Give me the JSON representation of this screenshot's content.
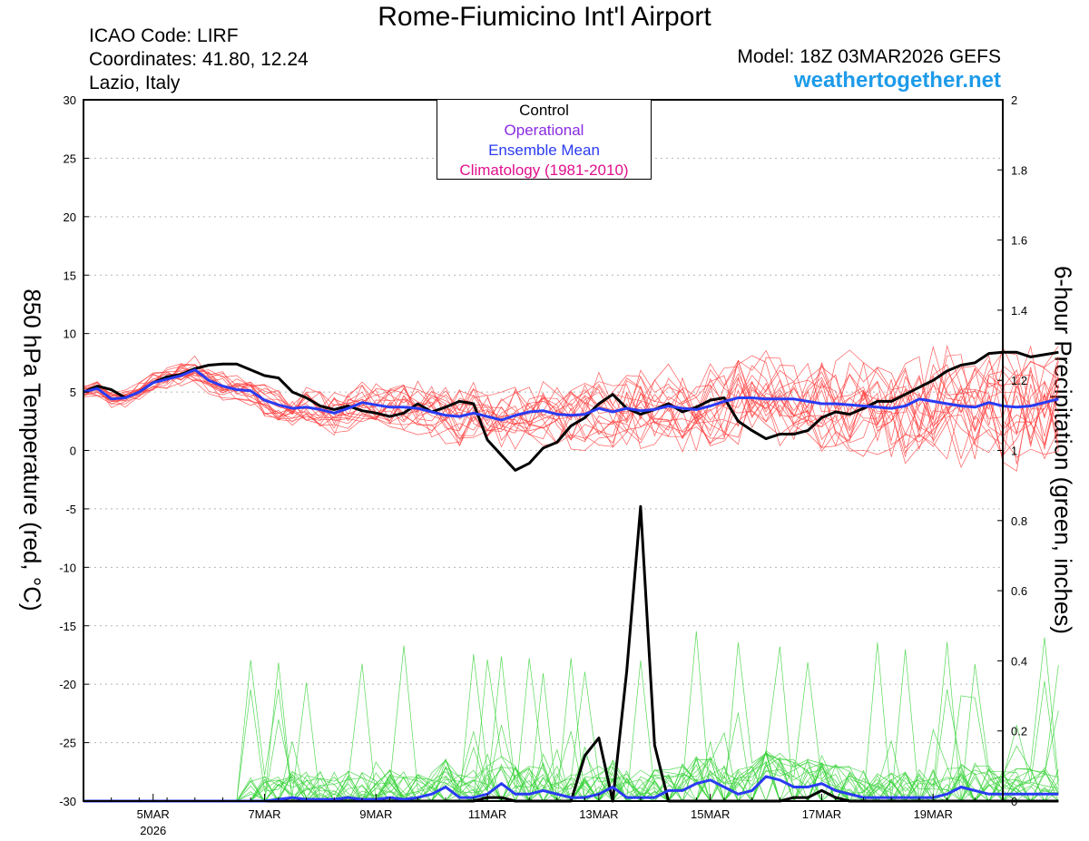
{
  "header": {
    "title": "Rome-Fiumicino Int'l Airport",
    "icao": "ICAO Code: LIRF",
    "coordinates": "Coordinates: 41.80, 12.24",
    "region": "Lazio, Italy",
    "model": "Model: 18Z 03MAR2026 GEFS",
    "site": "weathertogether.net"
  },
  "legend": {
    "items": [
      {
        "label": "Control",
        "color": "#000000"
      },
      {
        "label": "Operational",
        "color": "#8a2be2"
      },
      {
        "label": "Ensemble Mean",
        "color": "#2a3bf2"
      },
      {
        "label": "Climatology (1981-2010)",
        "color": "#e0108c"
      }
    ]
  },
  "chart_data": {
    "type": "line",
    "title": "Rome-Fiumicino Int'l Airport",
    "ylabel": "850 hPa Temperature (red, °C)",
    "y2label": "6-hour Precipitation (green, inches)",
    "ylim": [
      -30,
      30
    ],
    "y2lim": [
      0,
      2
    ],
    "yticks": [
      "30",
      "25",
      "20",
      "15",
      "10",
      "5",
      "0",
      "-5",
      "-10",
      "-15",
      "-20",
      "-25",
      "-30"
    ],
    "y2ticks": [
      "2",
      "1.8",
      "1.6",
      "1.4",
      "1.2",
      "1",
      "0.8",
      "0.6",
      "0.4",
      "0.2",
      "0"
    ],
    "xlim": [
      0,
      16.5
    ],
    "xticks": [
      {
        "day": 1.25,
        "label": "5MAR",
        "sub": "2026"
      },
      {
        "day": 3.25,
        "label": "7MAR",
        "sub": ""
      },
      {
        "day": 5.25,
        "label": "9MAR",
        "sub": ""
      },
      {
        "day": 7.25,
        "label": "11MAR",
        "sub": ""
      },
      {
        "day": 9.25,
        "label": "13MAR",
        "sub": ""
      },
      {
        "day": 11.25,
        "label": "15MAR",
        "sub": ""
      },
      {
        "day": 13.25,
        "label": "17MAR",
        "sub": ""
      },
      {
        "day": 15.25,
        "label": "19MAR",
        "sub": ""
      }
    ],
    "grid": true,
    "step_days": 0.25,
    "series": [
      {
        "name": "Control",
        "axis": "temperature",
        "color": "#000000",
        "values": [
          5.0,
          5.5,
          5.2,
          4.5,
          5.0,
          5.8,
          6.3,
          6.5,
          7.0,
          7.3,
          7.4,
          7.4,
          6.9,
          6.4,
          6.2,
          5.0,
          4.5,
          3.8,
          3.5,
          3.8,
          3.4,
          3.2,
          2.9,
          3.2,
          4.0,
          3.3,
          3.7,
          4.2,
          4.0,
          0.9,
          -0.4,
          -1.7,
          -1.1,
          0.2,
          0.7,
          2.1,
          2.8,
          4.0,
          4.8,
          3.6,
          3.1,
          3.5,
          4.0,
          3.3,
          3.7,
          4.3,
          4.5,
          2.5,
          1.7,
          1.0,
          1.4,
          1.4,
          1.7,
          2.8,
          3.3,
          3.1,
          3.6,
          4.2,
          4.2,
          4.8,
          5.4,
          6.0,
          6.8,
          7.3,
          7.5,
          8.3,
          8.4,
          8.4,
          8.0,
          8.2,
          8.4
        ]
      },
      {
        "name": "Ensemble Mean",
        "axis": "temperature",
        "color": "#2a3bf2",
        "values": [
          5.0,
          5.3,
          4.4,
          4.5,
          5.0,
          5.8,
          6.1,
          6.4,
          6.9,
          6.0,
          5.5,
          5.2,
          5.1,
          4.3,
          3.9,
          3.6,
          3.7,
          3.5,
          3.2,
          3.6,
          4.1,
          3.9,
          3.7,
          3.7,
          3.6,
          3.3,
          3.0,
          2.9,
          3.2,
          2.9,
          2.6,
          3.0,
          3.3,
          3.4,
          3.1,
          3.0,
          3.1,
          3.6,
          3.3,
          3.6,
          3.4,
          3.5,
          3.8,
          3.6,
          3.5,
          3.8,
          4.2,
          4.5,
          4.5,
          4.4,
          4.4,
          4.4,
          4.2,
          4.0,
          4.0,
          3.9,
          3.8,
          3.7,
          3.6,
          3.8,
          4.4,
          4.2,
          4.0,
          3.8,
          3.7,
          4.1,
          3.8,
          3.7,
          3.8,
          4.1,
          4.4
        ]
      },
      {
        "name": "Control precipitation",
        "axis": "precipitation",
        "color": "#000000",
        "values": [
          0,
          0,
          0,
          0,
          0,
          0,
          0,
          0,
          0,
          0,
          0,
          0,
          0,
          0,
          0,
          0,
          0,
          0,
          0,
          0,
          0,
          0,
          0,
          0,
          0,
          0,
          0,
          0,
          0,
          0.01,
          0.01,
          0,
          0,
          0,
          0,
          0,
          0.13,
          0.18,
          0,
          0.37,
          0.84,
          0.16,
          0,
          0,
          0,
          0,
          0,
          0,
          0,
          0,
          0,
          0.01,
          0.01,
          0.03,
          0.01,
          0,
          0,
          0,
          0,
          0,
          0,
          0,
          0,
          0,
          0,
          0,
          0,
          0,
          0,
          0,
          0
        ]
      },
      {
        "name": "Ensemble mean precipitation",
        "axis": "precipitation",
        "color": "#2a3bf2",
        "values": [
          0,
          0,
          0,
          0,
          0,
          0,
          0,
          0,
          0,
          0,
          0,
          0,
          0,
          0,
          0.005,
          0.01,
          0.005,
          0.005,
          0.005,
          0.01,
          0.005,
          0.005,
          0.01,
          0.005,
          0.01,
          0.02,
          0.04,
          0.01,
          0.01,
          0.02,
          0.05,
          0.02,
          0.02,
          0.03,
          0.02,
          0.01,
          0.01,
          0.02,
          0.04,
          0.01,
          0.01,
          0.01,
          0.03,
          0.03,
          0.05,
          0.06,
          0.04,
          0.02,
          0.03,
          0.07,
          0.06,
          0.04,
          0.04,
          0.05,
          0.03,
          0.02,
          0.01,
          0.01,
          0.01,
          0.01,
          0.01,
          0.01,
          0.02,
          0.04,
          0.03,
          0.02,
          0.02,
          0.02,
          0.02,
          0.02,
          0.02
        ]
      }
    ]
  }
}
